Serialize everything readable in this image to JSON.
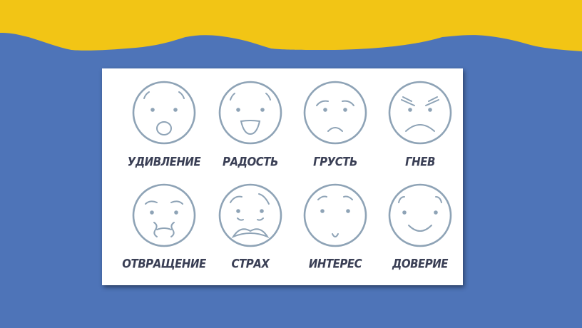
{
  "colors": {
    "background": "#4e74b8",
    "banner": "#f2c515",
    "face_stroke": "#8ea3b6",
    "label": "#3a3f55"
  },
  "emotions": [
    {
      "label": "УДИВЛЕНИЕ",
      "face": "surprise"
    },
    {
      "label": "РАДОСТЬ",
      "face": "joy"
    },
    {
      "label": "ГРУСТЬ",
      "face": "sadness"
    },
    {
      "label": "ГНЕВ",
      "face": "anger"
    },
    {
      "label": "ОТВРАЩЕНИЕ",
      "face": "disgust"
    },
    {
      "label": "СТРАХ",
      "face": "fear"
    },
    {
      "label": "ИНТЕРЕС",
      "face": "interest"
    },
    {
      "label": "ДОВЕРИЕ",
      "face": "trust"
    }
  ]
}
